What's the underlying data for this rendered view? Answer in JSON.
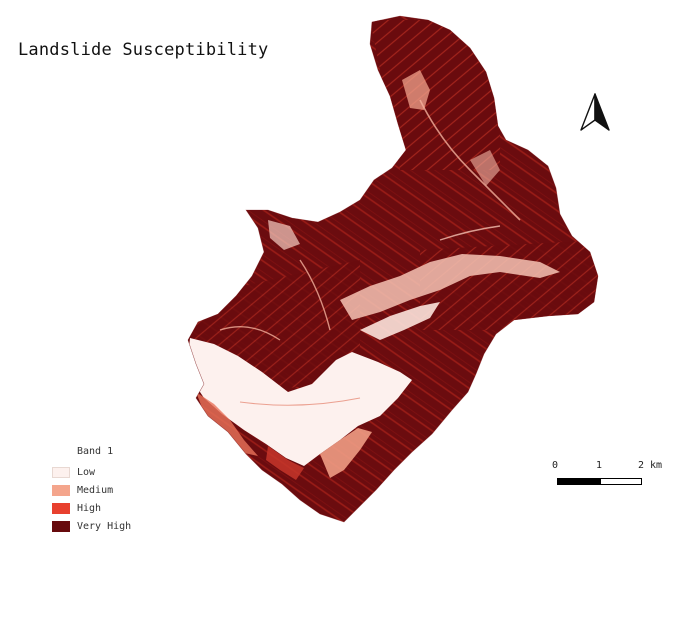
{
  "map": {
    "title": "Landslide Susceptibility",
    "north_arrow_icon": "north-arrow-icon"
  },
  "legend": {
    "title": "Band 1",
    "items": [
      {
        "label": "Low",
        "color": "#fdf1ee"
      },
      {
        "label": "Medium",
        "color": "#f4a58c"
      },
      {
        "label": "High",
        "color": "#e8402e"
      },
      {
        "label": "Very High",
        "color": "#670a0d"
      }
    ]
  },
  "scalebar": {
    "labels": [
      "0",
      "1",
      "2 km"
    ]
  },
  "colors": {
    "very_high": "#670a0d",
    "high": "#a01815",
    "medium": "#e36b52",
    "low": "#fde9e3"
  }
}
